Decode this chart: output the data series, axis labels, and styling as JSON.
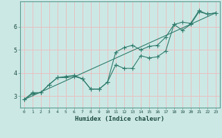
{
  "xlabel": "Humidex (Indice chaleur)",
  "ylabel": "",
  "background_color": "#cce8e5",
  "grid_color": "#e8c0c0",
  "line_color": "#2d7a6a",
  "xlim": [
    -0.5,
    23.5
  ],
  "ylim": [
    2.5,
    7.1
  ],
  "xticks": [
    0,
    1,
    2,
    3,
    4,
    5,
    6,
    7,
    8,
    9,
    10,
    11,
    12,
    13,
    14,
    15,
    16,
    17,
    18,
    19,
    20,
    21,
    22,
    23
  ],
  "yticks": [
    3,
    4,
    5,
    6
  ],
  "ytick_labels": [
    "3",
    "4",
    "5",
    "6"
  ],
  "series1_x": [
    0,
    1,
    2,
    3,
    4,
    5,
    6,
    7,
    8,
    9,
    10,
    11,
    12,
    13,
    14,
    15,
    16,
    17,
    18,
    19,
    20,
    21,
    22,
    23
  ],
  "series1_y": [
    2.85,
    3.15,
    3.15,
    3.5,
    3.8,
    3.8,
    3.85,
    3.75,
    3.3,
    3.3,
    3.6,
    4.35,
    4.2,
    4.2,
    4.75,
    4.65,
    4.7,
    4.95,
    6.1,
    5.85,
    6.1,
    6.65,
    6.55,
    6.6
  ],
  "series2_x": [
    0,
    1,
    2,
    3,
    4,
    5,
    6,
    7,
    8,
    9,
    10,
    11,
    12,
    13,
    14,
    15,
    16,
    17,
    18,
    19,
    20,
    21,
    22,
    23
  ],
  "series2_y": [
    2.85,
    3.1,
    3.15,
    3.5,
    3.8,
    3.85,
    3.9,
    3.75,
    3.3,
    3.3,
    3.6,
    4.9,
    5.1,
    5.2,
    5.0,
    5.15,
    5.2,
    5.55,
    6.1,
    6.2,
    6.15,
    6.7,
    6.55,
    6.6
  ],
  "series3_x": [
    0,
    23
  ],
  "series3_y": [
    2.85,
    6.6
  ]
}
